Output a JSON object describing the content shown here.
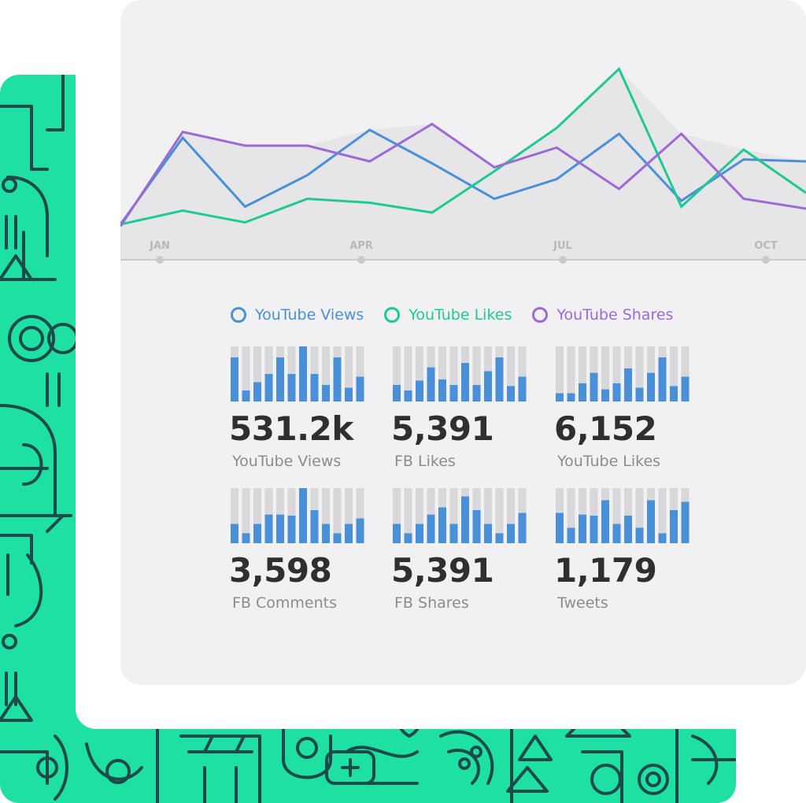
{
  "colors": {
    "pattern_bg": "#1fe0a3",
    "pattern_line": "#1d4a48",
    "card_bg": "#f1f1f3",
    "views": "#4a90d9",
    "likes": "#1dc994",
    "shares": "#9b6ad6",
    "bar_blue": "#4a90d9",
    "bar_gray": "#d8d8db"
  },
  "chart_data": [
    {
      "type": "line",
      "x": [
        "JAN",
        "",
        "",
        "APR",
        "",
        "",
        "JUL",
        "",
        "",
        "OCT",
        "",
        ""
      ],
      "tick_labels": [
        "JAN",
        "APR",
        "JUL",
        "OCT"
      ],
      "ylim": [
        0,
        10
      ],
      "grid": false,
      "legend": "bottom",
      "series": [
        {
          "name": "YouTube Views",
          "values": [
            0.2,
            4.6,
            1.1,
            2.7,
            5.0,
            3.3,
            1.5,
            2.5,
            4.8,
            1.4,
            3.5,
            3.4
          ]
        },
        {
          "name": "YouTube Likes",
          "values": [
            0.2,
            0.9,
            0.3,
            1.5,
            1.3,
            0.8,
            2.9,
            5.1,
            8.1,
            1.1,
            4.0,
            1.8
          ]
        },
        {
          "name": "YouTube Shares",
          "values": [
            0.1,
            4.9,
            4.2,
            4.2,
            3.4,
            5.3,
            3.1,
            4.1,
            2.0,
            4.8,
            1.5,
            1.0
          ]
        }
      ]
    },
    {
      "type": "bar",
      "name": "YouTube Views",
      "values": [
        0.8,
        0.2,
        0.35,
        0.5,
        0.8,
        0.5,
        1.0,
        0.5,
        0.3,
        0.8,
        0.25,
        0.45
      ],
      "ylim": [
        0,
        1
      ]
    },
    {
      "type": "bar",
      "name": "FB Likes",
      "values": [
        0.3,
        0.2,
        0.38,
        0.62,
        0.4,
        0.3,
        0.7,
        0.3,
        0.55,
        0.8,
        0.28,
        0.45
      ],
      "ylim": [
        0,
        1
      ]
    },
    {
      "type": "bar",
      "name": "YouTube Likes",
      "values": [
        0.15,
        0.15,
        0.33,
        0.52,
        0.22,
        0.33,
        0.6,
        0.25,
        0.52,
        0.8,
        0.28,
        0.45
      ],
      "ylim": [
        0,
        1
      ]
    },
    {
      "type": "bar",
      "name": "FB Comments",
      "values": [
        0.35,
        0.18,
        0.35,
        0.52,
        0.52,
        0.5,
        1.0,
        0.6,
        0.35,
        0.18,
        0.35,
        0.45
      ],
      "ylim": [
        0,
        1
      ]
    },
    {
      "type": "bar",
      "name": "FB Shares",
      "values": [
        0.35,
        0.18,
        0.35,
        0.52,
        0.65,
        0.35,
        0.85,
        0.6,
        0.35,
        0.18,
        0.35,
        0.55
      ],
      "ylim": [
        0,
        1
      ]
    },
    {
      "type": "bar",
      "name": "Tweets",
      "values": [
        0.55,
        0.28,
        0.52,
        0.5,
        0.78,
        0.35,
        0.5,
        0.28,
        0.78,
        0.18,
        0.6,
        0.75
      ],
      "ylim": [
        0,
        1
      ]
    }
  ],
  "axis": {
    "jan": "JAN",
    "apr": "APR",
    "jul": "JUL",
    "oct": "OCT"
  },
  "legend": {
    "views_label": "YouTube Views",
    "likes_label": "YouTube Likes",
    "shares_label": "YouTube Shares"
  },
  "stats": [
    {
      "value": "531.2k",
      "label": "YouTube Views"
    },
    {
      "value": "5,391",
      "label": "FB Likes"
    },
    {
      "value": "6,152",
      "label": "YouTube Likes"
    },
    {
      "value": "3,598",
      "label": "FB Comments"
    },
    {
      "value": "5,391",
      "label": "FB Shares"
    },
    {
      "value": "1,179",
      "label": "Tweets"
    }
  ]
}
